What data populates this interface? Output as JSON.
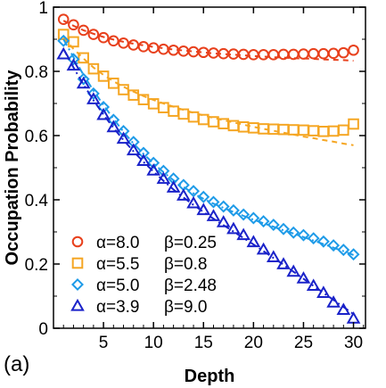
{
  "chart_data": {
    "type": "scatter",
    "xlabel": "Depth",
    "ylabel": "Occupation Probability",
    "panel_label": "(a)",
    "xlim": [
      0,
      31.2
    ],
    "ylim": [
      0,
      1
    ],
    "xticks": [
      5,
      10,
      15,
      20,
      25,
      30
    ],
    "xtick_labels": [
      "5",
      "10",
      "15",
      "20",
      "25",
      "30"
    ],
    "yticks": [
      0,
      0.2,
      0.4,
      0.6,
      0.8,
      1
    ],
    "ytick_labels": [
      "0",
      "0.2",
      "0.4",
      "0.6",
      "0.8",
      "1"
    ],
    "x": [
      1,
      2,
      3,
      4,
      5,
      6,
      7,
      8,
      9,
      10,
      11,
      12,
      13,
      14,
      15,
      16,
      17,
      18,
      19,
      20,
      21,
      22,
      23,
      24,
      25,
      26,
      27,
      28,
      29,
      30
    ],
    "legend": {
      "position": "bottom-left",
      "entries": [
        {
          "alpha": "α=8.0",
          "beta": "β=0.25"
        },
        {
          "alpha": "α=5.5",
          "beta": "β=0.8"
        },
        {
          "alpha": "α=5.0",
          "beta": "β=2.48"
        },
        {
          "alpha": "α=3.9",
          "beta": "β=9.0"
        }
      ]
    },
    "series": [
      {
        "marker": "circle",
        "color": "#e8401c",
        "line_style": "dashed",
        "values": [
          0.962,
          0.945,
          0.928,
          0.915,
          0.905,
          0.895,
          0.888,
          0.882,
          0.877,
          0.873,
          0.869,
          0.866,
          0.863,
          0.861,
          0.859,
          0.857,
          0.855,
          0.854,
          0.853,
          0.852,
          0.852,
          0.852,
          0.853,
          0.853,
          0.854,
          0.855,
          0.855,
          0.856,
          0.858,
          0.866
        ],
        "fit": [
          0.958,
          0.942,
          0.928,
          0.917,
          0.907,
          0.899,
          0.892,
          0.886,
          0.881,
          0.876,
          0.872,
          0.868,
          0.865,
          0.862,
          0.859,
          0.856,
          0.854,
          0.852,
          0.85,
          0.848,
          0.846,
          0.844,
          0.843,
          0.841,
          0.84,
          0.839,
          0.837,
          0.836,
          0.835,
          0.833
        ]
      },
      {
        "marker": "square",
        "color": "#f5a623",
        "line_style": "dashed",
        "values": [
          0.915,
          0.892,
          0.842,
          0.808,
          0.785,
          0.763,
          0.743,
          0.726,
          0.712,
          0.699,
          0.687,
          0.676,
          0.667,
          0.658,
          0.65,
          0.643,
          0.637,
          0.631,
          0.627,
          0.624,
          0.621,
          0.62,
          0.619,
          0.618,
          0.617,
          0.615,
          0.613,
          0.614,
          0.617,
          0.636
        ],
        "fit": [
          0.905,
          0.87,
          0.84,
          0.812,
          0.789,
          0.769,
          0.752,
          0.737,
          0.723,
          0.711,
          0.7,
          0.69,
          0.68,
          0.671,
          0.663,
          0.655,
          0.648,
          0.641,
          0.634,
          0.627,
          0.621,
          0.615,
          0.609,
          0.603,
          0.597,
          0.592,
          0.586,
          0.581,
          0.575,
          0.57
        ]
      },
      {
        "marker": "diamond",
        "color": "#1e9be8",
        "line_style": "dash-dot",
        "values": [
          0.895,
          0.838,
          0.776,
          0.731,
          0.689,
          0.649,
          0.614,
          0.58,
          0.546,
          0.515,
          0.49,
          0.466,
          0.446,
          0.427,
          0.409,
          0.393,
          0.379,
          0.367,
          0.354,
          0.343,
          0.333,
          0.322,
          0.309,
          0.298,
          0.29,
          0.28,
          0.27,
          0.258,
          0.244,
          0.23
        ],
        "fit": [
          0.9,
          0.844,
          0.789,
          0.74,
          0.695,
          0.652,
          0.612,
          0.575,
          0.543,
          0.513,
          0.486,
          0.461,
          0.44,
          0.42,
          0.403,
          0.388,
          0.375,
          0.362,
          0.35,
          0.338,
          0.327,
          0.316,
          0.305,
          0.295,
          0.284,
          0.273,
          0.262,
          0.251,
          0.24,
          0.228
        ]
      },
      {
        "marker": "triangle",
        "color": "#1a22c9",
        "line_style": "dash-dot",
        "values": [
          0.853,
          0.818,
          0.762,
          0.713,
          0.664,
          0.626,
          0.59,
          0.554,
          0.521,
          0.491,
          0.465,
          0.438,
          0.413,
          0.389,
          0.368,
          0.349,
          0.33,
          0.309,
          0.29,
          0.268,
          0.245,
          0.221,
          0.199,
          0.176,
          0.155,
          0.132,
          0.11,
          0.08,
          0.057,
          0.03
        ],
        "fit": [
          0.87,
          0.812,
          0.759,
          0.71,
          0.665,
          0.624,
          0.586,
          0.551,
          0.518,
          0.488,
          0.459,
          0.432,
          0.407,
          0.384,
          0.362,
          0.341,
          0.321,
          0.301,
          0.281,
          0.261,
          0.24,
          0.219,
          0.198,
          0.176,
          0.154,
          0.132,
          0.11,
          0.088,
          0.066,
          0.044
        ]
      }
    ]
  }
}
